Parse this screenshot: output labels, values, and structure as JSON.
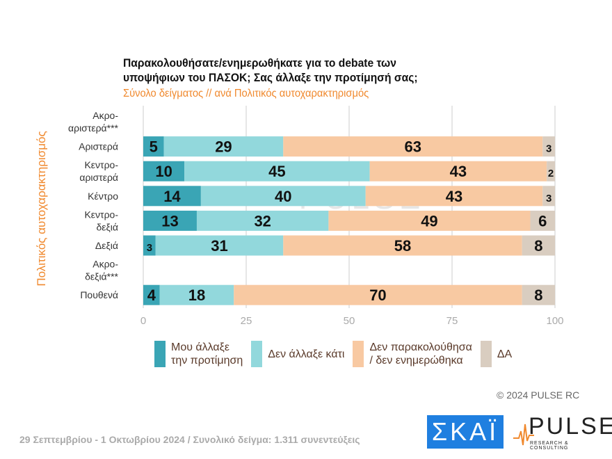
{
  "chart_data": {
    "type": "bar",
    "orientation": "horizontal-stacked",
    "title": "Παρακολουθήσατε/ενημερωθήκατε για το debate των υποψήφιων του ΠΑΣΟΚ;  Σας άλλαξε την προτίμησή σας;",
    "title_lines": [
      "Παρακολουθήσατε/ενημερωθήκατε για το debate των",
      "υποψήφιων του ΠΑΣΟΚ;  Σας άλλαξε την προτίμησή σας;"
    ],
    "subtitle": "Σύνολο δείγματος // ανά Πολιτικός αυτοχαρακτηρισμός",
    "ylabel": "Πολιτικός αυτοχαρακτηρισμός",
    "xlim": [
      0,
      100
    ],
    "xticks": [
      "0",
      "25",
      "50",
      "75",
      "100"
    ],
    "grid": true,
    "legend_position": "bottom",
    "categories": [
      [
        "Ακρο-",
        "αριστερά***"
      ],
      [
        "Αριστερά"
      ],
      [
        "Κεντρο-",
        "αριστερά"
      ],
      [
        "Κέντρο"
      ],
      [
        "Κεντρο-",
        "δεξιά"
      ],
      [
        "Δεξιά"
      ],
      [
        "Ακρο-",
        "δεξιά***"
      ],
      [
        "Πουθενά"
      ]
    ],
    "series": [
      {
        "name": "Μου άλλαξε την προτίμηση",
        "name_lines": [
          "Μου άλλαξε",
          "την προτίμηση"
        ],
        "color": "#3aa5b5",
        "values": [
          null,
          5,
          10,
          14,
          13,
          3,
          null,
          4
        ]
      },
      {
        "name": "Δεν άλλαξε κάτι",
        "name_lines": [
          "Δεν άλλαξε κάτι"
        ],
        "color": "#92d8dc",
        "values": [
          null,
          29,
          45,
          40,
          32,
          31,
          null,
          18
        ]
      },
      {
        "name": "Δεν παρακολούθησα / δεν ενημερώθηκα",
        "name_lines": [
          "Δεν παρακολούθησα",
          "/ δεν ενημερώθηκα"
        ],
        "color": "#f8c9a2",
        "values": [
          null,
          63,
          43,
          43,
          49,
          58,
          null,
          70
        ]
      },
      {
        "name": "ΔΑ",
        "name_lines": [
          "ΔΑ"
        ],
        "color": "#d9cdc0",
        "values": [
          null,
          3,
          2,
          3,
          6,
          8,
          null,
          8
        ]
      }
    ]
  },
  "copyright": "© 2024 PULSE RC",
  "footer": "29 Σεπτεμβρίου - 1 Οκτωβρίου 2024  /  Συνολικό δείγμα:  1.311 συνεντεύξεις",
  "logos": {
    "skai": "ΣΚΑΪ",
    "pulse": "PULSE",
    "pulse_sub": "RESEARCH & CONSULTING",
    "watermark": "PULSE"
  }
}
